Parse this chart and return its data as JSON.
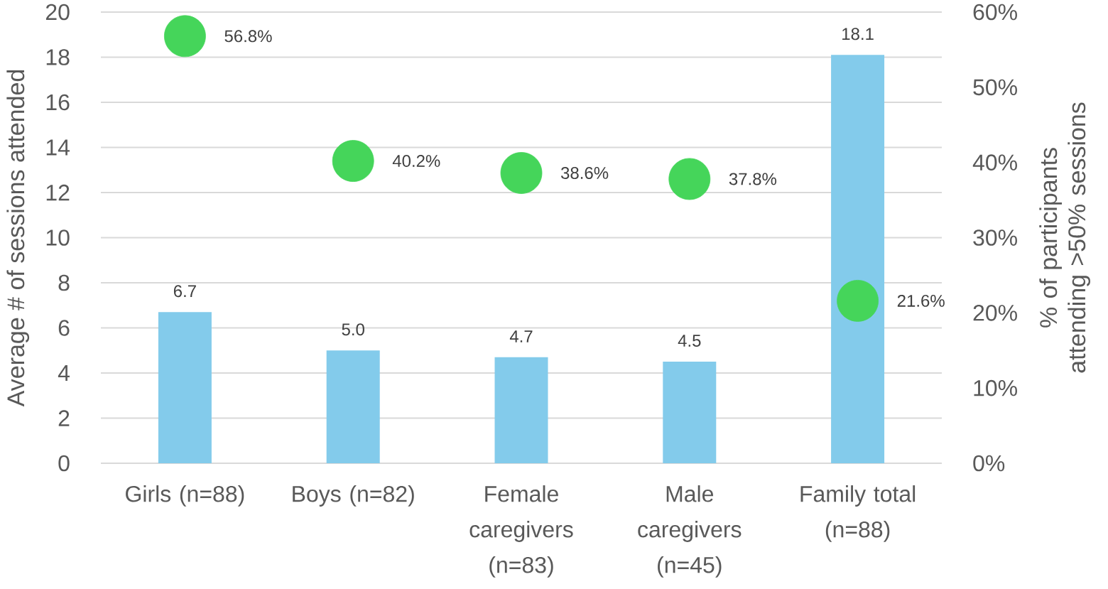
{
  "chart_data": {
    "type": "bar",
    "categories": [
      "Girls (n=88)",
      "Boys (n=82)",
      "Female caregivers (n=83)",
      "Male caregivers (n=45)",
      "Family total (n=88)"
    ],
    "series": [
      {
        "color": "#83cbeb",
        "values": [
          6.7,
          5.0,
          4.7,
          4.5,
          18.1
        ],
        "value_labels": [
          "6.7",
          "5.0",
          "4.7",
          "4.5",
          "18.1"
        ]
      },
      {
        "type": "scatter",
        "axis": "y2",
        "color": "#45d55a",
        "values": [
          56.8,
          40.2,
          38.6,
          37.8,
          21.6
        ],
        "value_labels": [
          "56.8%",
          "40.2%",
          "38.6%",
          "37.8%",
          "21.6%"
        ]
      }
    ],
    "ylabel": "Average # of sessions attended",
    "y2label": "% of participants attending >50% sessions",
    "ylim": [
      0,
      20
    ],
    "yticks": [
      0,
      2,
      4,
      6,
      8,
      10,
      12,
      14,
      16,
      18,
      20
    ],
    "y2lim": [
      0,
      60
    ],
    "y2ticks": [
      {
        "value": 0,
        "label": "0%"
      },
      {
        "value": 10,
        "label": "10%"
      },
      {
        "value": 20,
        "label": "20%"
      },
      {
        "value": 30,
        "label": "30%"
      },
      {
        "value": 40,
        "label": "40%"
      },
      {
        "value": 50,
        "label": "50%"
      },
      {
        "value": 60,
        "label": "60%"
      }
    ],
    "grid": "y"
  }
}
